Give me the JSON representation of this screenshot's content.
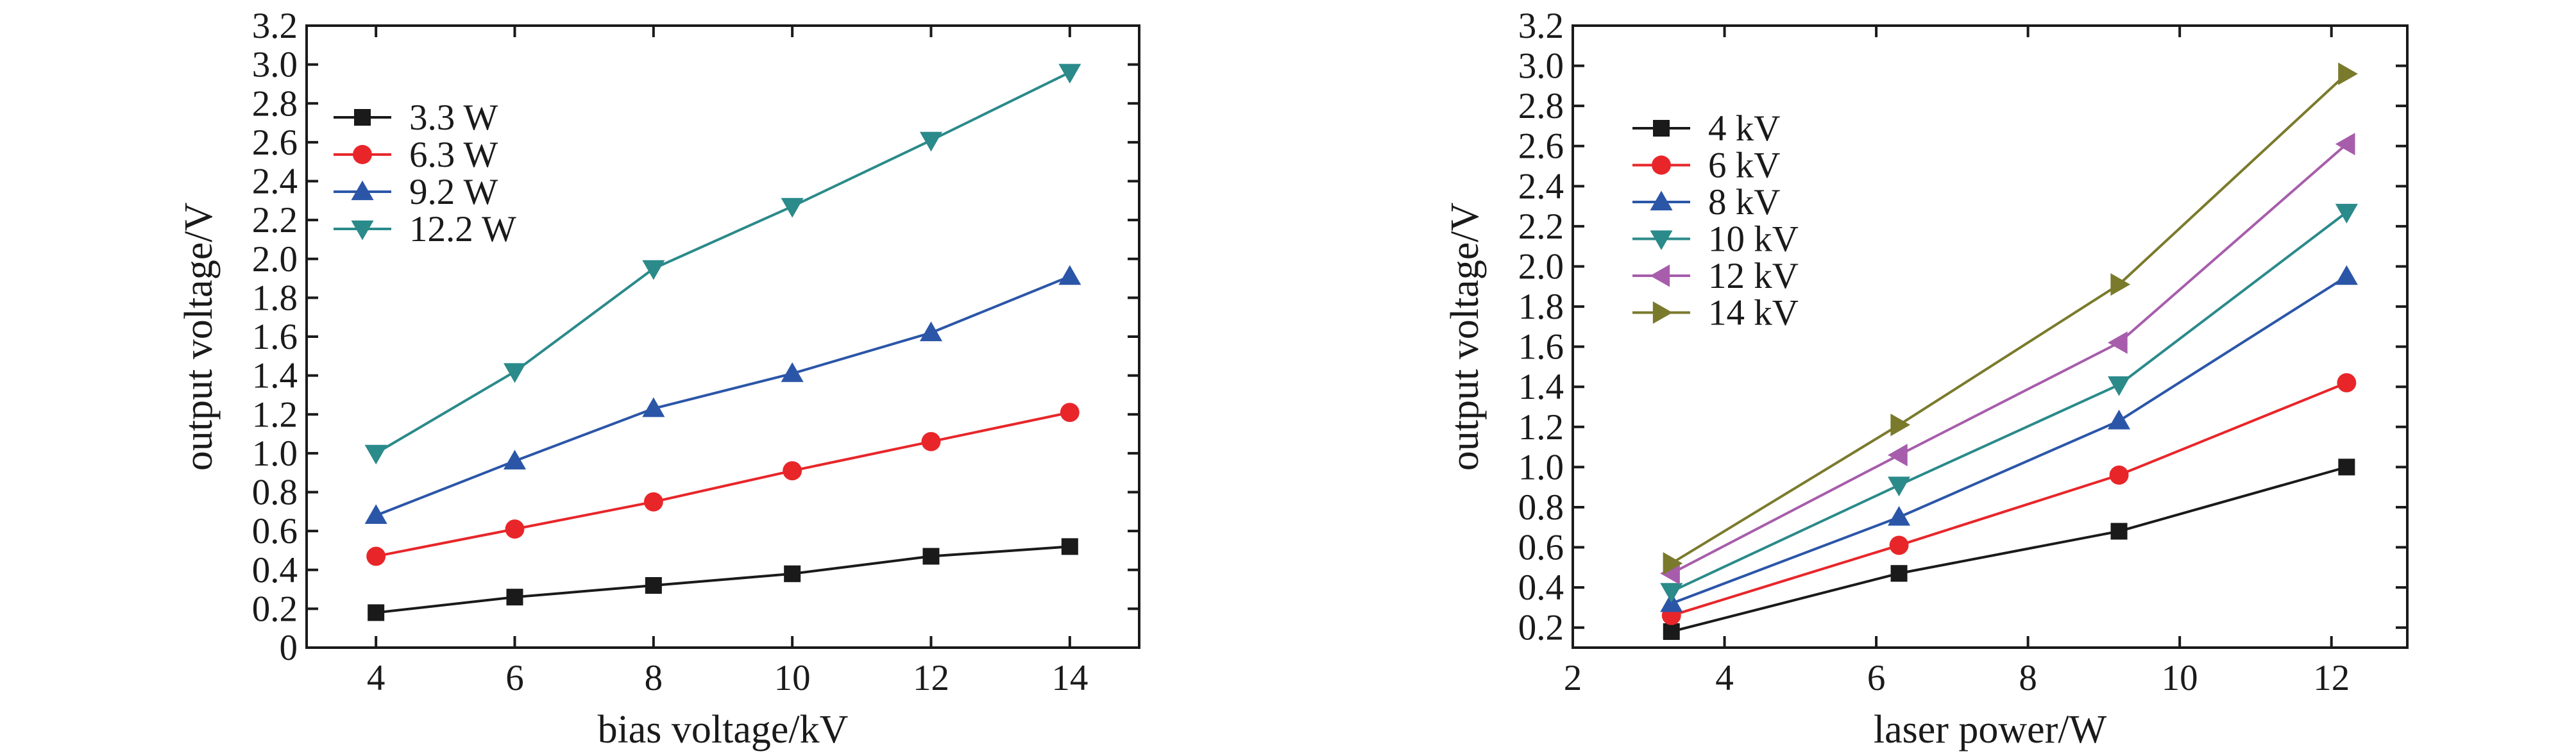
{
  "chart_data": [
    {
      "type": "line",
      "xlabel": "bias voltage/kV",
      "ylabel": "output voltage/V",
      "xlim": [
        3,
        15
      ],
      "ylim": [
        0,
        3.2
      ],
      "xticks": [
        4,
        6,
        8,
        10,
        12,
        14
      ],
      "yticks": [
        0,
        0.2,
        0.4,
        0.6,
        0.8,
        1.0,
        1.2,
        1.4,
        1.6,
        1.8,
        2.0,
        2.2,
        2.4,
        2.6,
        2.8,
        3.0,
        3.2
      ],
      "xtick_labels": [
        "4",
        "6",
        "8",
        "10",
        "12",
        "14"
      ],
      "ytick_labels": [
        "0",
        "0.2",
        "0.4",
        "0.6",
        "0.8",
        "1.0",
        "1.2",
        "1.4",
        "1.6",
        "1.8",
        "2.0",
        "2.2",
        "2.4",
        "2.6",
        "2.8",
        "3.0",
        "3.2"
      ],
      "grid": false,
      "legend_position": "upper-left",
      "x": [
        4,
        6,
        8,
        10,
        12,
        14
      ],
      "series": [
        {
          "name": "3.3 W",
          "color": "#1a1a1a",
          "marker": "square",
          "values": [
            0.18,
            0.26,
            0.32,
            0.38,
            0.47,
            0.52
          ]
        },
        {
          "name": "6.3 W",
          "color": "#e8262a",
          "marker": "circle",
          "values": [
            0.47,
            0.61,
            0.75,
            0.91,
            1.06,
            1.21
          ]
        },
        {
          "name": "9.2 W",
          "color": "#2b56a8",
          "marker": "triangle-up",
          "values": [
            0.68,
            0.96,
            1.23,
            1.41,
            1.62,
            1.91
          ]
        },
        {
          "name": "12.2 W",
          "color": "#2b8a8a",
          "marker": "triangle-down",
          "values": [
            1.0,
            1.42,
            1.95,
            2.27,
            2.61,
            2.96
          ]
        }
      ]
    },
    {
      "type": "line",
      "xlabel": "laser power/W",
      "ylabel": "output voltage/V",
      "xlim": [
        2,
        13
      ],
      "ylim": [
        0.1,
        3.2
      ],
      "xticks": [
        2,
        4,
        6,
        8,
        10,
        12
      ],
      "yticks": [
        0.2,
        0.4,
        0.6,
        0.8,
        1.0,
        1.2,
        1.4,
        1.6,
        1.8,
        2.0,
        2.2,
        2.4,
        2.6,
        2.8,
        3.0,
        3.2
      ],
      "xtick_labels": [
        "2",
        "4",
        "6",
        "8",
        "10",
        "12"
      ],
      "ytick_labels": [
        "0.2",
        "0.4",
        "0.6",
        "0.8",
        "1.0",
        "1.2",
        "1.4",
        "1.6",
        "1.8",
        "2.0",
        "2.2",
        "2.4",
        "2.6",
        "2.8",
        "3.0",
        "3.2"
      ],
      "grid": false,
      "legend_position": "upper-left",
      "x": [
        3.3,
        6.3,
        9.2,
        12.2
      ],
      "series": [
        {
          "name": "4 kV",
          "color": "#1a1a1a",
          "marker": "square",
          "values": [
            0.18,
            0.47,
            0.68,
            1.0
          ]
        },
        {
          "name": "6 kV",
          "color": "#e8262a",
          "marker": "circle",
          "values": [
            0.26,
            0.61,
            0.96,
            1.42
          ]
        },
        {
          "name": "8 kV",
          "color": "#2b56a8",
          "marker": "triangle-up",
          "values": [
            0.32,
            0.75,
            1.23,
            1.95
          ]
        },
        {
          "name": "10 kV",
          "color": "#2b8a8a",
          "marker": "triangle-down",
          "values": [
            0.38,
            0.91,
            1.41,
            2.27
          ]
        },
        {
          "name": "12 kV",
          "color": "#a75dab",
          "marker": "triangle-left",
          "values": [
            0.47,
            1.06,
            1.62,
            2.61
          ]
        },
        {
          "name": "14 kV",
          "color": "#7a7a2c",
          "marker": "triangle-right",
          "values": [
            0.52,
            1.21,
            1.91,
            2.96
          ]
        }
      ]
    }
  ]
}
